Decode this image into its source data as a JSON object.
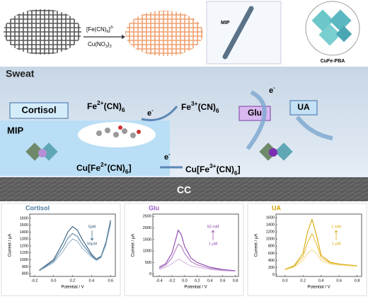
{
  "top": {
    "reagent1": [
      "[Fe(CN)",
      "6",
      "]",
      "3-"
    ],
    "reagent2": [
      "Cu(NO",
      "3",
      ")",
      "2"
    ],
    "fiber_label": "MIP",
    "crystal_label": "CuFe-PBA"
  },
  "middle": {
    "sweat": "Sweat",
    "cortisol": "Cortisol",
    "fe2": [
      "Fe",
      "2+",
      "(CN)",
      "6"
    ],
    "fe3": [
      "Fe",
      "3+",
      "(CN)",
      "6"
    ],
    "e1": [
      "e",
      "-"
    ],
    "e2": [
      "e",
      "-"
    ],
    "e3": [
      "e",
      "-"
    ],
    "glu": "Glu",
    "ua": "UA",
    "mip": "MIP",
    "cufe2": [
      "Cu[Fe",
      "2+",
      "(CN)",
      "6",
      "]"
    ],
    "cufe3": [
      "Cu[Fe",
      "3+",
      "(CN)",
      "6",
      "]"
    ],
    "cc": "CC"
  },
  "charts": [
    {
      "type": "line",
      "title": "Cortisol",
      "xlabel": "Potential / V",
      "ylabel": "Current / μA",
      "xlim": [
        -0.25,
        0.65
      ],
      "ylim": [
        760,
        1660
      ],
      "xticks": [
        -0.2,
        {
          "value": 0,
          "label": "0.0"
        },
        0.2,
        0.4,
        0.6
      ],
      "yticks": [
        800,
        900,
        1000,
        1100,
        1200,
        1300,
        1400,
        1500,
        1600
      ],
      "x": [
        -0.15,
        -0.1,
        0,
        0.1,
        0.15,
        0.2,
        0.25,
        0.3,
        0.4,
        0.45,
        0.5,
        0.55,
        0.6
      ],
      "series": [
        {
          "color": "#2e5a7a",
          "values": [
            850,
            900,
            1000,
            1250,
            1400,
            1480,
            1430,
            1300,
            1080,
            1010,
            1050,
            1250,
            1570
          ]
        },
        {
          "color": "#5a84a4",
          "values": [
            845,
            890,
            980,
            1180,
            1310,
            1380,
            1340,
            1230,
            1060,
            1000,
            1040,
            1230,
            1540
          ]
        },
        {
          "color": "#9ab8cc",
          "values": [
            840,
            880,
            960,
            1120,
            1230,
            1300,
            1270,
            1170,
            1040,
            990,
            1030,
            1210,
            1510
          ]
        }
      ],
      "annotations": [
        "5pM",
        "50μM"
      ],
      "arrow": "down"
    },
    {
      "type": "line",
      "title": "Glu",
      "xlabel": "Potential / V",
      "ylabel": "Current / μA",
      "xlim": [
        -0.5,
        0.85
      ],
      "ylim": [
        -100,
        2600
      ],
      "xticks": [
        -0.4,
        -0.2,
        {
          "value": 0,
          "label": "0.0"
        },
        0.2,
        0.4,
        0.6,
        0.8
      ],
      "yticks": [
        0,
        500,
        1000,
        1500,
        2000,
        2500
      ],
      "x": [
        -0.4,
        -0.3,
        -0.2,
        -0.15,
        -0.1,
        -0.05,
        0,
        0.1,
        0.2,
        0.4,
        0.6,
        0.8
      ],
      "series": [
        {
          "color": "#8a3fa8",
          "values": [
            300,
            450,
            900,
            1400,
            1900,
            1700,
            1200,
            700,
            500,
            300,
            200,
            150
          ]
        },
        {
          "color": "#b07cc6",
          "values": [
            250,
            380,
            700,
            1000,
            1300,
            1200,
            900,
            550,
            400,
            250,
            180,
            130
          ]
        },
        {
          "color": "#d7b8e3",
          "values": [
            200,
            300,
            450,
            550,
            650,
            600,
            500,
            350,
            300,
            200,
            150,
            120
          ]
        }
      ],
      "annotations": [
        "50 mM",
        "1 μM"
      ],
      "arrow": "up"
    },
    {
      "type": "line",
      "title": "UA",
      "xlabel": "Potential / V",
      "ylabel": "Current / μA",
      "xlim": [
        -0.1,
        0.85
      ],
      "ylim": [
        -50,
        1700
      ],
      "xticks": [
        {
          "value": 0,
          "label": "0.0"
        },
        0.2,
        0.4,
        0.6,
        0.8
      ],
      "yticks": [
        0,
        200,
        400,
        600,
        800,
        1000,
        1200,
        1400,
        1600
      ],
      "x": [
        0,
        0.1,
        0.2,
        0.25,
        0.3,
        0.35,
        0.4,
        0.5,
        0.6,
        0.8
      ],
      "series": [
        {
          "color": "#d9a400",
          "values": [
            150,
            250,
            600,
            1200,
            1550,
            1100,
            550,
            350,
            300,
            250
          ]
        },
        {
          "color": "#e8c040",
          "values": [
            140,
            230,
            500,
            900,
            1150,
            850,
            480,
            330,
            290,
            240
          ]
        },
        {
          "color": "#f2dc90",
          "values": [
            130,
            210,
            400,
            600,
            700,
            600,
            400,
            300,
            270,
            230
          ]
        }
      ],
      "annotations": [
        "1 mM",
        "1 μM"
      ],
      "arrow": "up"
    }
  ]
}
